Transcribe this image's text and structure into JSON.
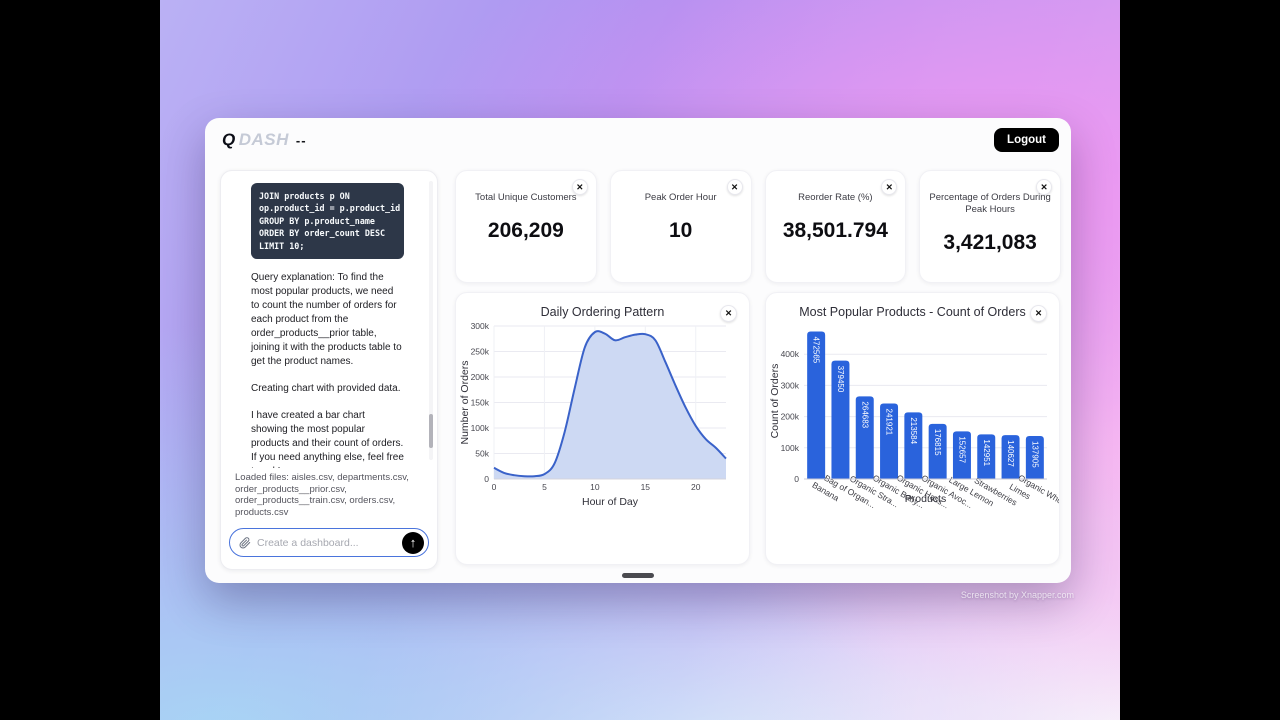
{
  "header": {
    "logo_q": "Q",
    "logo_dash": "DASH",
    "logo_suffix": "--",
    "logout_label": "Logout"
  },
  "ui": {
    "close_glyph": "✕",
    "send_glyph": "↑"
  },
  "chat": {
    "code": "JOIN products p ON\nop.product_id = p.product_id\nGROUP BY p.product_name\nORDER BY order_count DESC\nLIMIT 10;",
    "message_1": "Query explanation: To find the most popular products, we need to count the number of orders for each product from the order_products__prior table, joining it with the products table to get the product names.",
    "message_2": "Creating chart with provided data.",
    "message_3": "I have created a bar chart showing the most popular products and their count of orders. If you need anything else, feel free to ask!\nDONE",
    "loaded_files": "Loaded files: aisles.csv, departments.csv, order_products__prior.csv, order_products__train.csv, orders.csv, products.csv",
    "input_placeholder": "Create a dashboard..."
  },
  "stat_cards": [
    {
      "title": "Total Unique Customers",
      "value": "206,209"
    },
    {
      "title": "Peak Order Hour",
      "value": "10"
    },
    {
      "title": "Reorder Rate (%)",
      "value": "38,501.794"
    },
    {
      "title": "Percentage of Orders During Peak Hours",
      "value": "3,421,083"
    }
  ],
  "chart_data": [
    {
      "type": "area",
      "title": "Daily Ordering Pattern",
      "xlabel": "Hour of Day",
      "ylabel": "Number of Orders",
      "x": [
        0,
        1,
        2,
        3,
        4,
        5,
        6,
        7,
        8,
        9,
        10,
        11,
        12,
        13,
        14,
        15,
        16,
        17,
        18,
        19,
        20,
        21,
        22,
        23
      ],
      "y": [
        22000,
        12000,
        7500,
        5500,
        5500,
        9500,
        30500,
        92000,
        178000,
        258000,
        288000,
        285000,
        272000,
        278000,
        283000,
        284000,
        272000,
        229000,
        183000,
        140000,
        104000,
        78000,
        61000,
        40000
      ],
      "xlim": [
        0,
        23
      ],
      "ylim": [
        0,
        300000
      ],
      "xtick_values": [
        0,
        5,
        10,
        15,
        20
      ],
      "xtick_labels": [
        "0",
        "5",
        "10",
        "15",
        "20"
      ],
      "ytick_values": [
        0,
        50000,
        100000,
        150000,
        200000,
        250000,
        300000
      ],
      "ytick_labels": [
        "0",
        "50k",
        "100k",
        "150k",
        "200k",
        "250k",
        "300k"
      ],
      "line_color": "#3a62c9",
      "fill_color": "#cdd9f3",
      "grid": true,
      "legend": "none"
    },
    {
      "type": "bar",
      "title": "Most Popular Products - Count of Orders",
      "xlabel": "Products",
      "ylabel": "Count of Orders",
      "categories": [
        "Banana",
        "Bag of Organic Bananas",
        "Organic Strawberries",
        "Organic Baby Spinach",
        "Organic Hass Avocado",
        "Organic Avocado",
        "Large Lemon",
        "Strawberries",
        "Limes",
        "Organic Whole Milk"
      ],
      "values": [
        472565,
        379450,
        264683,
        241921,
        213584,
        176815,
        152657,
        142951,
        140627,
        137905
      ],
      "ylim": [
        0,
        500000
      ],
      "ytick_values": [
        0,
        100000,
        200000,
        300000,
        400000
      ],
      "ytick_labels": [
        "0",
        "100k",
        "200k",
        "300k",
        "400k"
      ],
      "bar_color": "#2a63dc",
      "value_label_color": "#ffffff",
      "grid": true,
      "legend": "none"
    }
  ],
  "watermark": "Screenshot by Xnapper.com"
}
